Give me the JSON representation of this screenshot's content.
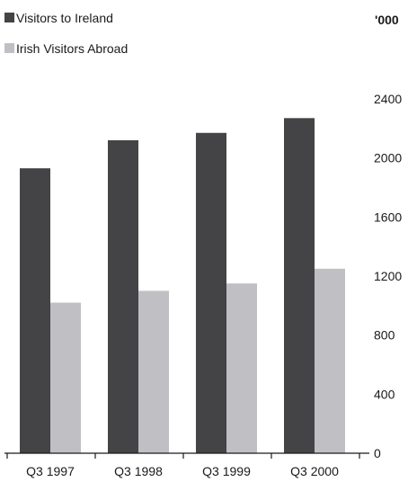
{
  "chart_data": {
    "type": "bar",
    "unit_label": "'000",
    "categories": [
      "Q3 1997",
      "Q3 1998",
      "Q3 1999",
      "Q3 2000"
    ],
    "series": [
      {
        "name": "Visitors to Ireland",
        "values": [
          1930,
          2120,
          2170,
          2270
        ],
        "color": "#444446"
      },
      {
        "name": "Irish Visitors Abroad",
        "values": [
          1020,
          1100,
          1150,
          1250
        ],
        "color": "#c0bfc4"
      }
    ],
    "ylim": [
      0,
      2400
    ],
    "yticks": [
      "0",
      "400",
      "800",
      "1200",
      "1600",
      "2000",
      "2400"
    ],
    "axis_side": "right",
    "legend_position": "top-left",
    "grid": false
  }
}
